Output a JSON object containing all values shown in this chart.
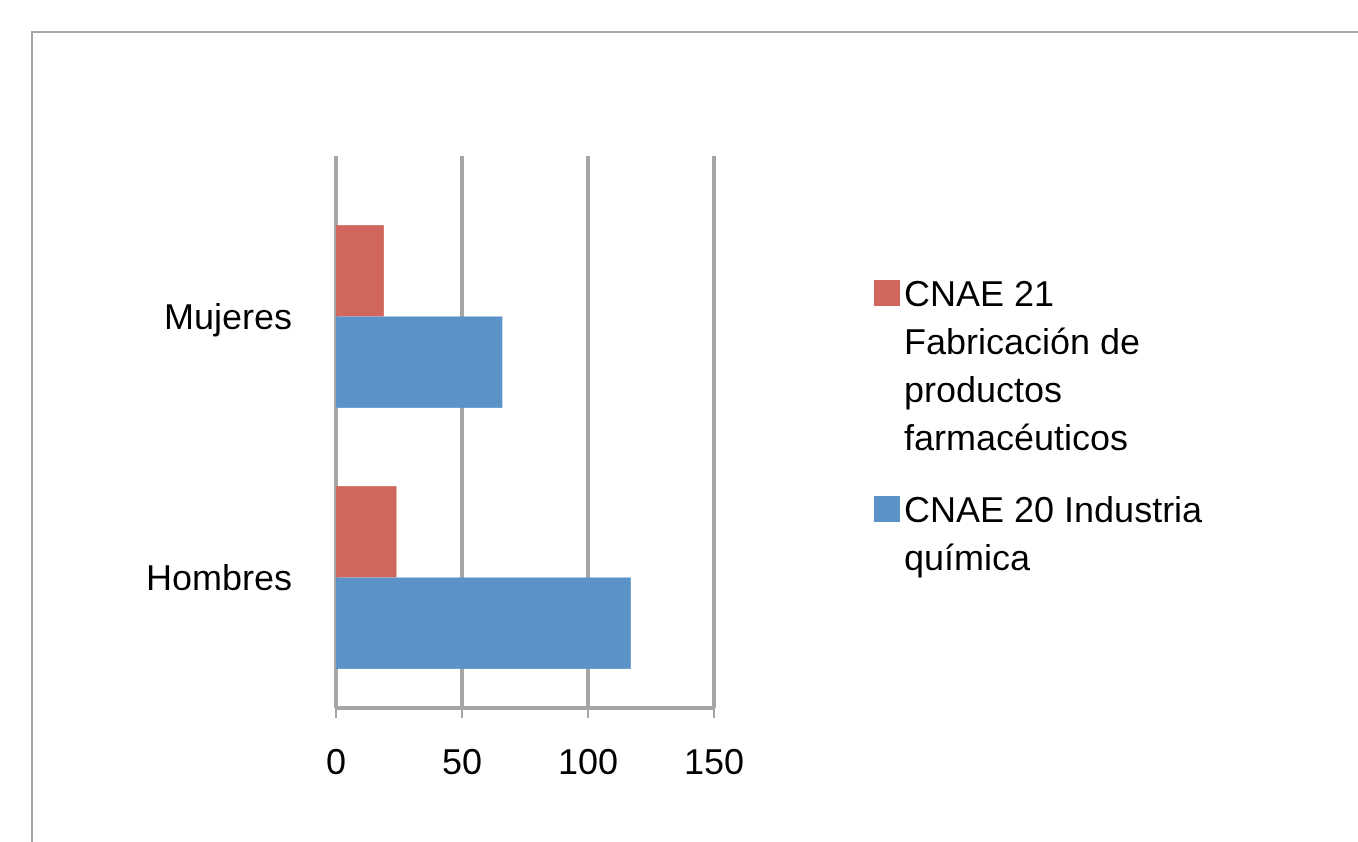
{
  "chart_data": {
    "type": "bar",
    "orientation": "horizontal",
    "categories": [
      "Mujeres",
      "Hombres"
    ],
    "series": [
      {
        "name": "CNAE 21 Fabricación de productos farmacéuticos",
        "color": "#d0665c",
        "values": [
          19,
          24
        ]
      },
      {
        "name": "CNAE 20 Industria química",
        "color": "#5b93c8",
        "values": [
          66,
          117
        ]
      }
    ],
    "xlim": [
      0,
      150
    ],
    "xticks": [
      0,
      50,
      100,
      150
    ],
    "grid": "x",
    "legend": "right"
  }
}
